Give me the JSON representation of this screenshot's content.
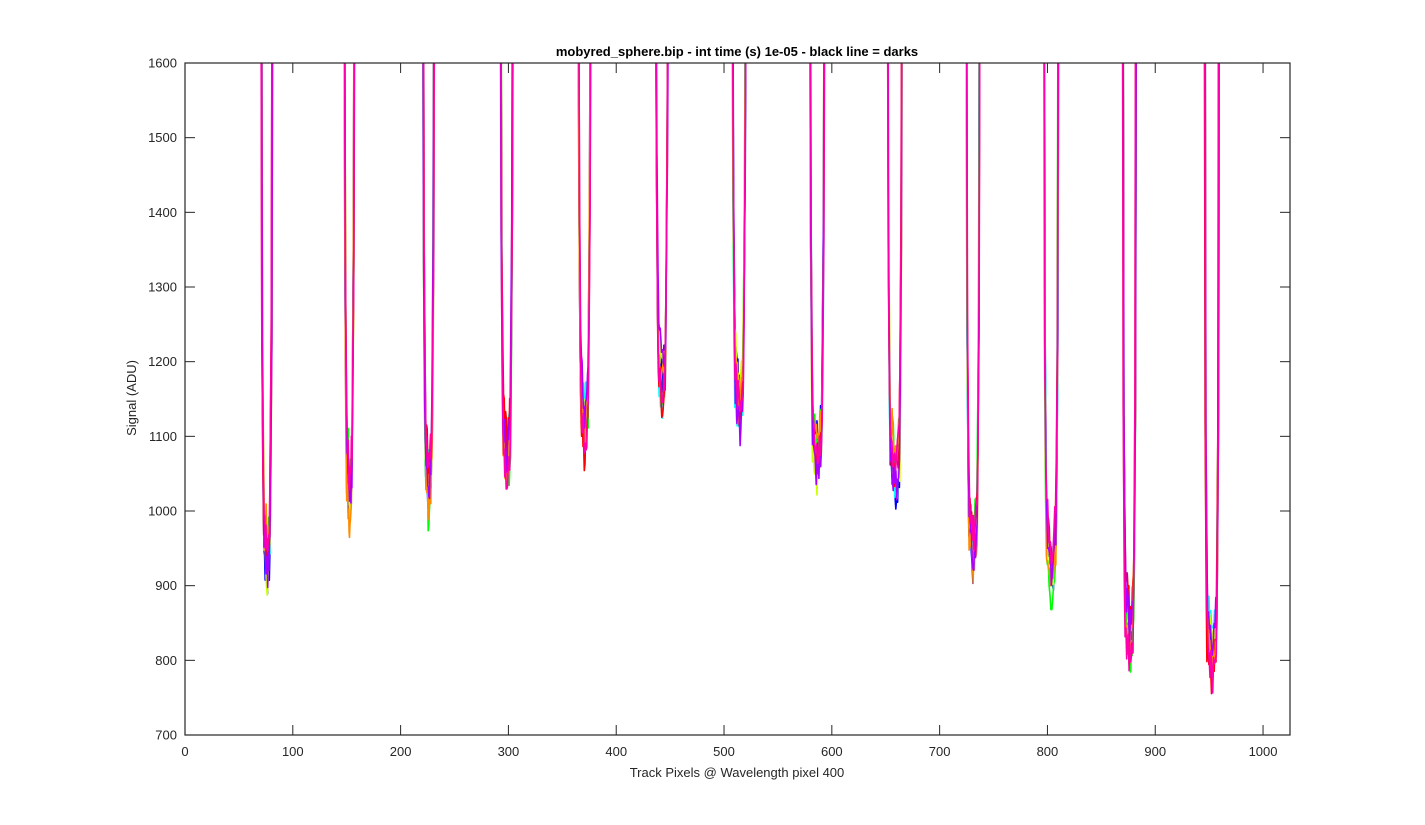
{
  "chart_data": {
    "type": "line",
    "title": "mobyred_sphere.bip - int time (s) 1e-05 - black line = darks",
    "xlabel": "Track Pixels @ Wavelength pixel 400",
    "ylabel": "Signal (ADU)",
    "xlim": [
      0,
      1025
    ],
    "ylim": [
      700,
      1600
    ],
    "xticks": [
      0,
      100,
      200,
      300,
      400,
      500,
      600,
      700,
      800,
      900,
      1000
    ],
    "yticks": [
      700,
      800,
      900,
      1000,
      1100,
      1200,
      1300,
      1400,
      1500,
      1600
    ],
    "grid": false,
    "legend": "none",
    "series_colors": [
      "#0000ff",
      "#00ffff",
      "#00ff00",
      "#ccff00",
      "#ff0000",
      "#ff8c00",
      "#aa00ff",
      "#ff00aa"
    ],
    "troughs": [
      {
        "left_edge": 71,
        "right_edge": 81,
        "center": 77,
        "min": 893
      },
      {
        "left_edge": 148,
        "right_edge": 157,
        "center": 152,
        "min": 982
      },
      {
        "left_edge": 221,
        "right_edge": 231,
        "center": 226,
        "min": 992
      },
      {
        "left_edge": 293,
        "right_edge": 304,
        "center": 299,
        "min": 1027
      },
      {
        "left_edge": 365,
        "right_edge": 376,
        "center": 370,
        "min": 1073
      },
      {
        "left_edge": 437,
        "right_edge": 448,
        "center": 442,
        "min": 1128
      },
      {
        "left_edge": 508,
        "right_edge": 520,
        "center": 514,
        "min": 1103
      },
      {
        "left_edge": 580,
        "right_edge": 593,
        "center": 586,
        "min": 1034
      },
      {
        "left_edge": 652,
        "right_edge": 665,
        "center": 658,
        "min": 1008
      },
      {
        "left_edge": 725,
        "right_edge": 737,
        "center": 730,
        "min": 910
      },
      {
        "left_edge": 797,
        "right_edge": 810,
        "center": 803,
        "min": 882
      },
      {
        "left_edge": 870,
        "right_edge": 882,
        "center": 876,
        "min": 792
      },
      {
        "left_edge": 946,
        "right_edge": 959,
        "center": 952,
        "min": 767
      }
    ]
  }
}
